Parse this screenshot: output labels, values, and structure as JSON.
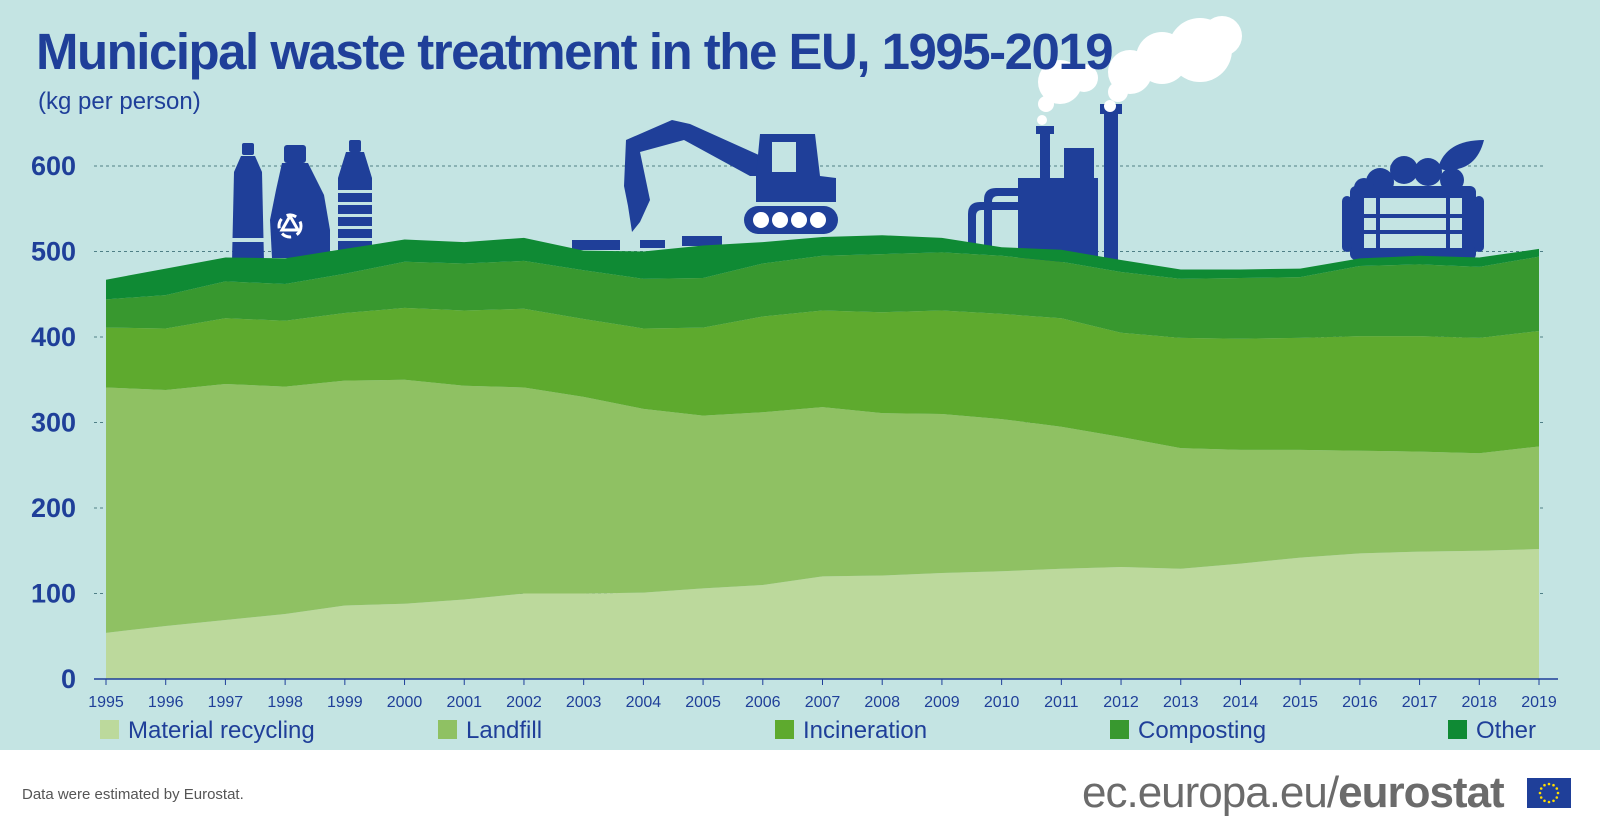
{
  "header": {
    "title": "Municipal waste treatment in the EU, 1995-2019",
    "subtitle": "(kg per person)"
  },
  "footer": {
    "note": "Data were estimated by Eurostat.",
    "brand_plain": "ec.europa.eu/",
    "brand_bold": "eurostat"
  },
  "colors": {
    "background": "#c4e4e3",
    "text": "#1f3f99",
    "silhouettes": "#1f3f99",
    "material_recycling": "#bcd99c",
    "landfill": "#8fc163",
    "incineration": "#5eaa2e",
    "composting": "#38982f",
    "other": "#0f8a34"
  },
  "icons": [
    "bottles-icon",
    "recycling-symbol-icon",
    "excavator-icon",
    "factory-icon",
    "smoke-icon",
    "compost-bin-icon",
    "leaf-icon",
    "eu-flag-icon"
  ],
  "chart_data": {
    "type": "area",
    "stacked": true,
    "title": "Municipal waste treatment in the EU, 1995-2019",
    "subtitle": "(kg per person)",
    "x": [
      1995,
      1996,
      1997,
      1998,
      1999,
      2000,
      2001,
      2002,
      2003,
      2004,
      2005,
      2006,
      2007,
      2008,
      2009,
      2010,
      2011,
      2012,
      2013,
      2014,
      2015,
      2016,
      2017,
      2018,
      2019
    ],
    "ylim": [
      0,
      600
    ],
    "yticks": [
      0,
      100,
      200,
      300,
      400,
      500,
      600
    ],
    "grid": true,
    "legend_position": "bottom",
    "series": [
      {
        "name": "Material recycling",
        "values": [
          54,
          62,
          69,
          76,
          86,
          88,
          93,
          100,
          100,
          101,
          106,
          110,
          120,
          121,
          124,
          126,
          129,
          131,
          129,
          135,
          142,
          147,
          149,
          150,
          152
        ]
      },
      {
        "name": "Landfill",
        "values": [
          287,
          276,
          276,
          266,
          263,
          262,
          250,
          241,
          230,
          215,
          202,
          202,
          198,
          190,
          186,
          178,
          166,
          152,
          141,
          133,
          126,
          120,
          117,
          114,
          120
        ]
      },
      {
        "name": "Incineration",
        "values": [
          70,
          72,
          77,
          77,
          79,
          84,
          88,
          92,
          91,
          94,
          103,
          112,
          113,
          118,
          121,
          123,
          127,
          122,
          129,
          130,
          131,
          134,
          135,
          135,
          135
        ]
      },
      {
        "name": "Composting",
        "values": [
          33,
          39,
          43,
          43,
          46,
          54,
          55,
          56,
          57,
          58,
          58,
          62,
          64,
          68,
          68,
          68,
          66,
          71,
          69,
          71,
          71,
          82,
          84,
          83,
          87
        ]
      },
      {
        "name": "Other",
        "values": [
          23,
          31,
          28,
          30,
          29,
          26,
          25,
          27,
          23,
          32,
          38,
          25,
          22,
          22,
          17,
          10,
          14,
          14,
          11,
          10,
          10,
          9,
          10,
          11,
          9
        ]
      }
    ]
  }
}
